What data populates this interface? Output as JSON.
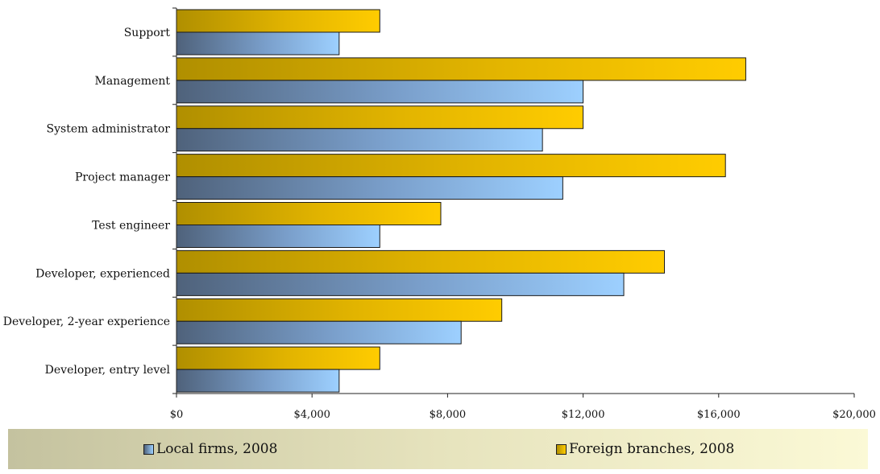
{
  "chart_data": {
    "type": "bar",
    "orientation": "horizontal",
    "categories": [
      "Support",
      "Management",
      "System administrator",
      "Project manager",
      "Test engineer",
      "Developer, experienced",
      "Developer, 2-year experience",
      "Developer, entry level"
    ],
    "series": [
      {
        "name": "Local firms, 2008",
        "values": [
          4800,
          12000,
          10800,
          11400,
          6000,
          13200,
          8400,
          4800
        ],
        "color": "#99ccff"
      },
      {
        "name": "Foreign branches, 2008",
        "values": [
          6000,
          16800,
          12000,
          16200,
          7800,
          14400,
          9600,
          6000
        ],
        "color": "#ffcc00"
      }
    ],
    "xlim": [
      0,
      20000
    ],
    "xticks": [
      0,
      4000,
      8000,
      12000,
      16000,
      20000
    ],
    "xtick_labels": [
      "$0",
      "$4,000",
      "$8,000",
      "$12,000",
      "$16,000",
      "$20,000"
    ],
    "grid": false,
    "legend_position": "bottom"
  }
}
